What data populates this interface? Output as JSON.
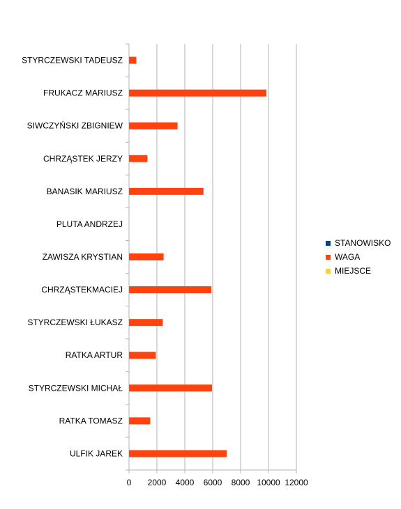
{
  "chart_data": {
    "type": "bar",
    "orientation": "horizontal",
    "categories": [
      "STYRCZEWSKI TADEUSZ",
      "FRUKACZ MARIUSZ",
      "SIWCZYŃSKI ZBIGNIEW",
      "CHRZĄSTEK JERZY",
      "BANASIK MARIUSZ",
      "PLUTA ANDRZEJ",
      "ZAWISZA KRYSTIAN",
      "CHRZĄSTEKMACIEJ",
      "STYRCZEWSKI ŁUKASZ",
      "RATKA ARTUR",
      "STYRCZEWSKI MICHAŁ",
      "RATKA TOMASZ",
      "ULFIK JAREK"
    ],
    "series": [
      {
        "name": "STANOWISKO",
        "color": "#004586",
        "values": [
          0,
          0,
          0,
          0,
          0,
          0,
          0,
          0,
          0,
          0,
          0,
          0,
          0
        ]
      },
      {
        "name": "WAGA",
        "color": "#ff420e",
        "values": [
          520,
          9850,
          3480,
          1320,
          5340,
          0,
          2480,
          5900,
          2420,
          1920,
          5950,
          1520,
          7000
        ]
      },
      {
        "name": "MIEJSCE",
        "color": "#ffd320",
        "values": [
          0,
          0,
          0,
          0,
          0,
          0,
          0,
          0,
          0,
          0,
          0,
          0,
          0
        ]
      }
    ],
    "xlim": [
      0,
      12000
    ],
    "x_ticks": [
      0,
      2000,
      4000,
      6000,
      8000,
      10000,
      12000
    ],
    "grid": "vertical",
    "legend_position": "right"
  }
}
